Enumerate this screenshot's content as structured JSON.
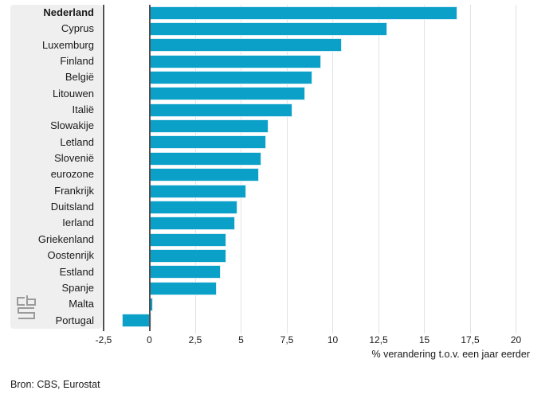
{
  "chart_data": {
    "type": "bar",
    "orientation": "horizontal",
    "title": "",
    "xlabel": "% verandering t.o.v. een jaar eerder",
    "source": "Bron: CBS, Eurostat",
    "categories": [
      "Nederland",
      "Cyprus",
      "Luxemburg",
      "Finland",
      "België",
      "Litouwen",
      "Italië",
      "Slowakije",
      "Letland",
      "Slovenië",
      "eurozone",
      "Frankrijk",
      "Duitsland",
      "Ierland",
      "Griekenland",
      "Oostenrijk",
      "Estland",
      "Spanje",
      "Malta",
      "Portugal"
    ],
    "values": [
      16.7,
      12.9,
      10.4,
      9.3,
      8.8,
      8.4,
      7.7,
      6.4,
      6.3,
      6.0,
      5.9,
      5.2,
      4.7,
      4.6,
      4.1,
      4.1,
      3.8,
      3.6,
      0.1,
      -1.5
    ],
    "emphasized_category": "Nederland",
    "xlim": [
      -2.5,
      20.5
    ],
    "xticks": {
      "values": [
        -2.5,
        0,
        2.5,
        5,
        7.5,
        10,
        12.5,
        15,
        17.5,
        20
      ],
      "labels": [
        "-2,5",
        "0",
        "2,5",
        "5",
        "7,5",
        "10",
        "12,5",
        "15",
        "17,5",
        "20"
      ]
    },
    "grid": "vertical-gridlines-on",
    "legend": null,
    "icons": {
      "logo": "cbs-logo"
    },
    "colors": {
      "bar": "#0ba0c8",
      "bar_edge": "#d8eff8",
      "axis_line": "#4f4f4f",
      "gridline": "#e2e2e2",
      "label_panel_bg": "#efefef",
      "text": "#1a1a1a",
      "logo": "#9b9b9b"
    }
  }
}
